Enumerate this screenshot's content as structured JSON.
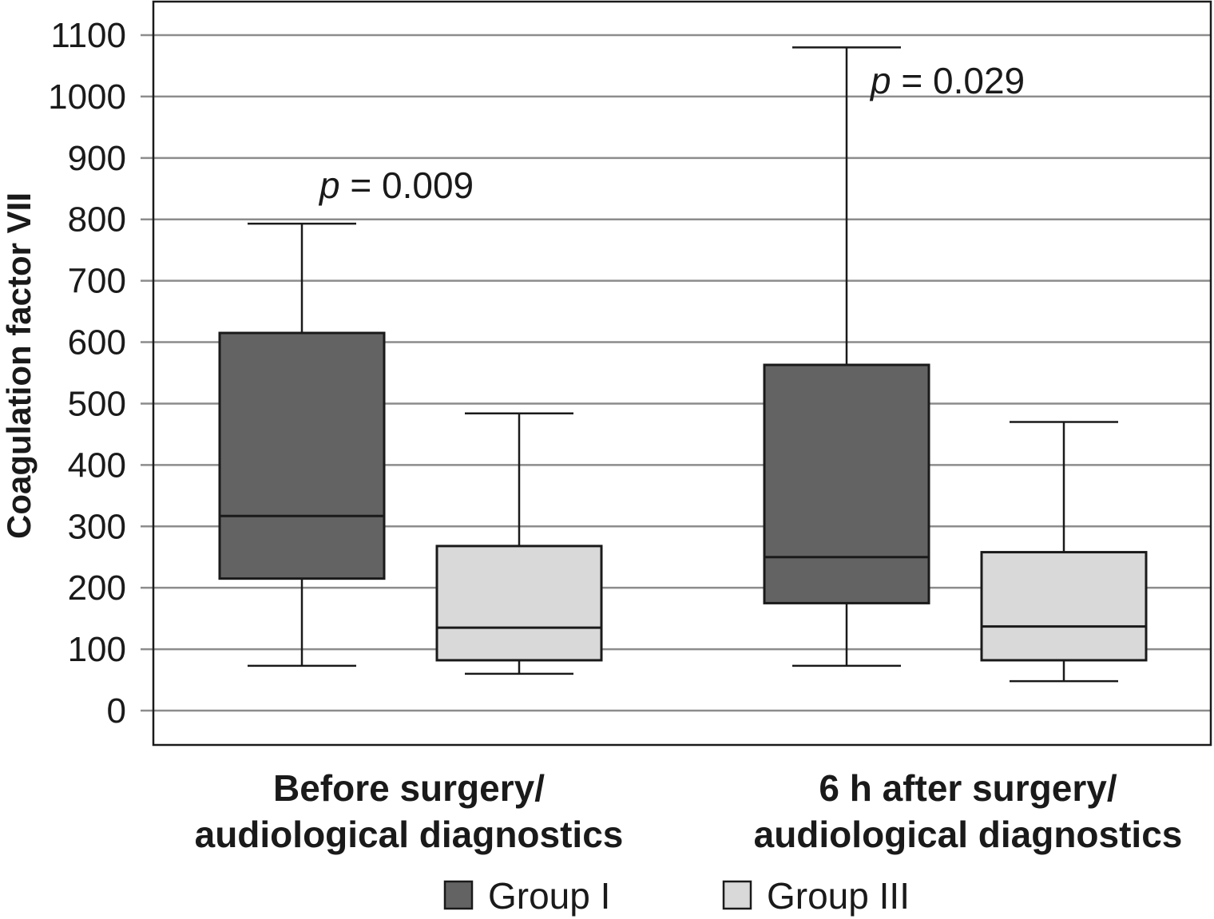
{
  "chart_data": {
    "type": "box",
    "ylabel": "Coagulation factor VII",
    "ylim": [
      0,
      1100
    ],
    "yticks": [
      0,
      100,
      200,
      300,
      400,
      500,
      600,
      700,
      800,
      900,
      1000,
      1100
    ],
    "grid": true,
    "categories": [
      {
        "line1": "Before surgery/",
        "line2": "audiological diagnostics"
      },
      {
        "line1": "6 h after surgery/",
        "line2": "audiological diagnostics"
      }
    ],
    "series": [
      {
        "name": "Group I",
        "color": "#636363",
        "boxes": [
          {
            "min": 73,
            "q1": 215,
            "median": 317,
            "q3": 615,
            "max": 793
          },
          {
            "min": 73,
            "q1": 175,
            "median": 250,
            "q3": 563,
            "max": 1080
          }
        ]
      },
      {
        "name": "Group III",
        "color": "#d9d9d9",
        "boxes": [
          {
            "min": 60,
            "q1": 82,
            "median": 135,
            "q3": 268,
            "max": 484
          },
          {
            "min": 48,
            "q1": 82,
            "median": 137,
            "q3": 258,
            "max": 470
          }
        ]
      }
    ],
    "annotations": [
      {
        "category": 0,
        "p_symbol": "p",
        "text": " = 0.009"
      },
      {
        "category": 1,
        "p_symbol": "p",
        "text": " = 0.029"
      }
    ],
    "legend_position": "bottom"
  }
}
